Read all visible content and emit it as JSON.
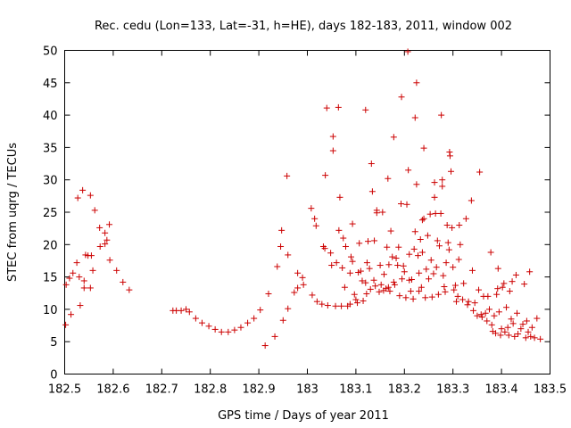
{
  "chart_data": {
    "type": "scatter",
    "title": "Rec. cedu (Lon=133, Lat=-31, h=HE), days 182-183, 2011, window 002",
    "xlabel": "GPS time / Days of year 2011",
    "ylabel": "STEC from uqrg / TECUs",
    "xlim": [
      182.5,
      183.5
    ],
    "ylim": [
      0,
      50
    ],
    "xticks": [
      182.5,
      182.6,
      182.7,
      182.8,
      182.9,
      183,
      183.1,
      183.2,
      183.3,
      183.4,
      183.5
    ],
    "xtick_labels": [
      "182.5",
      "182.6",
      "182.7",
      "182.8",
      "182.9",
      "183",
      "183.1",
      "183.2",
      "183.3",
      "183.4",
      "183.5"
    ],
    "yticks": [
      0,
      5,
      10,
      15,
      20,
      25,
      30,
      35,
      40,
      45,
      50
    ],
    "ytick_labels": [
      "0",
      "5",
      "10",
      "15",
      "20",
      "25",
      "30",
      "35",
      "40",
      "45",
      "50"
    ],
    "grid": false,
    "marker": "+",
    "color": "#cc0000",
    "points": [
      [
        182.502,
        7.6
      ],
      [
        182.503,
        13.8
      ],
      [
        182.51,
        14.8
      ],
      [
        182.513,
        9.2
      ],
      [
        182.517,
        15.6
      ],
      [
        182.525,
        17.2
      ],
      [
        182.527,
        27.2
      ],
      [
        182.53,
        15.0
      ],
      [
        182.532,
        10.6
      ],
      [
        182.537,
        28.4
      ],
      [
        182.54,
        14.4
      ],
      [
        182.54,
        13.3
      ],
      [
        182.543,
        18.4
      ],
      [
        182.548,
        18.3
      ],
      [
        182.553,
        13.3
      ],
      [
        182.553,
        27.6
      ],
      [
        182.555,
        18.3
      ],
      [
        182.558,
        16.0
      ],
      [
        182.562,
        25.3
      ],
      [
        182.572,
        22.6
      ],
      [
        182.573,
        19.7
      ],
      [
        182.583,
        20.1
      ],
      [
        182.583,
        21.8
      ],
      [
        182.587,
        20.7
      ],
      [
        182.592,
        23.1
      ],
      [
        182.593,
        17.6
      ],
      [
        182.607,
        16.0
      ],
      [
        182.62,
        14.2
      ],
      [
        182.633,
        13.0
      ],
      [
        182.723,
        9.8
      ],
      [
        182.73,
        9.8
      ],
      [
        182.74,
        9.8
      ],
      [
        182.75,
        10.0
      ],
      [
        182.757,
        9.6
      ],
      [
        182.77,
        8.6
      ],
      [
        182.783,
        7.9
      ],
      [
        182.797,
        7.4
      ],
      [
        182.81,
        6.9
      ],
      [
        182.823,
        6.5
      ],
      [
        182.837,
        6.5
      ],
      [
        182.85,
        6.8
      ],
      [
        182.863,
        7.2
      ],
      [
        182.877,
        7.9
      ],
      [
        182.89,
        8.6
      ],
      [
        182.903,
        9.9
      ],
      [
        182.913,
        4.4
      ],
      [
        182.92,
        12.4
      ],
      [
        182.933,
        5.8
      ],
      [
        182.938,
        16.6
      ],
      [
        182.945,
        19.7
      ],
      [
        182.947,
        22.2
      ],
      [
        182.95,
        8.3
      ],
      [
        182.958,
        30.6
      ],
      [
        182.96,
        18.4
      ],
      [
        182.96,
        10.1
      ],
      [
        182.973,
        12.6
      ],
      [
        182.98,
        15.6
      ],
      [
        182.98,
        13.3
      ],
      [
        182.99,
        14.9
      ],
      [
        182.992,
        13.8
      ],
      [
        183.008,
        25.6
      ],
      [
        183.01,
        12.2
      ],
      [
        183.015,
        24.0
      ],
      [
        183.018,
        22.9
      ],
      [
        183.02,
        11.2
      ],
      [
        183.03,
        10.8
      ],
      [
        183.033,
        19.7
      ],
      [
        183.036,
        19.4
      ],
      [
        183.037,
        30.7
      ],
      [
        183.04,
        41.1
      ],
      [
        183.042,
        10.6
      ],
      [
        183.048,
        18.7
      ],
      [
        183.05,
        16.8
      ],
      [
        183.053,
        36.7
      ],
      [
        183.053,
        34.5
      ],
      [
        183.058,
        10.5
      ],
      [
        183.06,
        17.2
      ],
      [
        183.064,
        41.2
      ],
      [
        183.065,
        22.2
      ],
      [
        183.067,
        27.3
      ],
      [
        183.07,
        10.5
      ],
      [
        183.072,
        16.4
      ],
      [
        183.074,
        21.0
      ],
      [
        183.077,
        13.4
      ],
      [
        183.079,
        19.7
      ],
      [
        183.083,
        10.5
      ],
      [
        183.088,
        10.8
      ],
      [
        183.088,
        15.6
      ],
      [
        183.09,
        18.1
      ],
      [
        183.093,
        23.2
      ],
      [
        183.093,
        17.4
      ],
      [
        183.097,
        12.3
      ],
      [
        183.1,
        11.5
      ],
      [
        183.103,
        11.0
      ],
      [
        183.105,
        15.7
      ],
      [
        183.107,
        20.2
      ],
      [
        183.11,
        15.9
      ],
      [
        183.113,
        14.4
      ],
      [
        183.115,
        11.3
      ],
      [
        183.12,
        40.8
      ],
      [
        183.12,
        14.1
      ],
      [
        183.122,
        12.4
      ],
      [
        183.123,
        17.2
      ],
      [
        183.125,
        20.5
      ],
      [
        183.128,
        16.3
      ],
      [
        183.13,
        13.1
      ],
      [
        183.132,
        32.5
      ],
      [
        183.134,
        28.2
      ],
      [
        183.137,
        14.5
      ],
      [
        183.138,
        20.6
      ],
      [
        183.14,
        13.6
      ],
      [
        183.143,
        25.3
      ],
      [
        183.143,
        24.9
      ],
      [
        183.148,
        12.7
      ],
      [
        183.15,
        16.8
      ],
      [
        183.152,
        13.8
      ],
      [
        183.155,
        25.0
      ],
      [
        183.157,
        12.9
      ],
      [
        183.158,
        15.4
      ],
      [
        183.162,
        13.2
      ],
      [
        183.164,
        19.6
      ],
      [
        183.166,
        30.2
      ],
      [
        183.167,
        13.4
      ],
      [
        183.168,
        16.9
      ],
      [
        183.17,
        12.8
      ],
      [
        183.172,
        22.1
      ],
      [
        183.175,
        18.1
      ],
      [
        183.178,
        36.6
      ],
      [
        183.178,
        14.2
      ],
      [
        183.18,
        13.8
      ],
      [
        183.183,
        17.9
      ],
      [
        183.186,
        16.8
      ],
      [
        183.188,
        19.6
      ],
      [
        183.19,
        12.1
      ],
      [
        183.193,
        26.3
      ],
      [
        183.194,
        42.8
      ],
      [
        183.195,
        14.7
      ],
      [
        183.198,
        16.7
      ],
      [
        183.2,
        15.8
      ],
      [
        183.203,
        11.8
      ],
      [
        183.205,
        26.2
      ],
      [
        183.207,
        49.8
      ],
      [
        183.208,
        31.5
      ],
      [
        183.21,
        18.5
      ],
      [
        183.21,
        14.5
      ],
      [
        183.213,
        12.8
      ],
      [
        183.215,
        14.6
      ],
      [
        183.218,
        11.6
      ],
      [
        183.22,
        19.3
      ],
      [
        183.222,
        39.6
      ],
      [
        183.222,
        22.0
      ],
      [
        183.225,
        45.0
      ],
      [
        183.225,
        29.3
      ],
      [
        183.228,
        18.3
      ],
      [
        183.23,
        15.6
      ],
      [
        183.23,
        12.8
      ],
      [
        183.233,
        20.8
      ],
      [
        183.235,
        13.4
      ],
      [
        183.237,
        23.8
      ],
      [
        183.237,
        18.8
      ],
      [
        183.24,
        34.9
      ],
      [
        183.24,
        24.0
      ],
      [
        183.243,
        11.8
      ],
      [
        183.245,
        16.2
      ],
      [
        183.248,
        21.4
      ],
      [
        183.25,
        14.7
      ],
      [
        183.253,
        24.7
      ],
      [
        183.255,
        17.6
      ],
      [
        183.257,
        11.9
      ],
      [
        183.26,
        15.5
      ],
      [
        183.262,
        29.6
      ],
      [
        183.262,
        27.3
      ],
      [
        183.264,
        24.8
      ],
      [
        183.266,
        16.5
      ],
      [
        183.268,
        20.6
      ],
      [
        183.27,
        12.3
      ],
      [
        183.272,
        19.8
      ],
      [
        183.275,
        24.8
      ],
      [
        183.276,
        40.0
      ],
      [
        183.278,
        30.0
      ],
      [
        183.278,
        29.0
      ],
      [
        183.28,
        15.2
      ],
      [
        183.282,
        13.5
      ],
      [
        183.284,
        12.7
      ],
      [
        183.286,
        17.2
      ],
      [
        183.288,
        23.0
      ],
      [
        183.29,
        20.3
      ],
      [
        183.292,
        19.2
      ],
      [
        183.293,
        34.3
      ],
      [
        183.294,
        33.7
      ],
      [
        183.296,
        31.3
      ],
      [
        183.298,
        22.6
      ],
      [
        183.3,
        16.5
      ],
      [
        183.302,
        13.0
      ],
      [
        183.305,
        13.7
      ],
      [
        183.307,
        11.2
      ],
      [
        183.31,
        12.0
      ],
      [
        183.312,
        17.7
      ],
      [
        183.313,
        23.0
      ],
      [
        183.315,
        20.0
      ],
      [
        183.32,
        11.5
      ],
      [
        183.322,
        14.0
      ],
      [
        183.327,
        24.0
      ],
      [
        183.33,
        10.7
      ],
      [
        183.332,
        11.2
      ],
      [
        183.338,
        26.8
      ],
      [
        183.34,
        16.0
      ],
      [
        183.342,
        9.8
      ],
      [
        183.345,
        11.0
      ],
      [
        183.35,
        9.0
      ],
      [
        183.353,
        13.0
      ],
      [
        183.355,
        31.2
      ],
      [
        183.358,
        9.2
      ],
      [
        183.36,
        8.8
      ],
      [
        183.363,
        12.0
      ],
      [
        183.367,
        9.4
      ],
      [
        183.37,
        8.2
      ],
      [
        183.372,
        12.0
      ],
      [
        183.375,
        10.0
      ],
      [
        183.378,
        18.8
      ],
      [
        183.38,
        7.6
      ],
      [
        183.382,
        6.6
      ],
      [
        183.385,
        9.0
      ],
      [
        183.388,
        6.3
      ],
      [
        183.39,
        12.3
      ],
      [
        183.392,
        13.2
      ],
      [
        183.393,
        16.3
      ],
      [
        183.395,
        9.6
      ],
      [
        183.398,
        6.0
      ],
      [
        183.4,
        7.0
      ],
      [
        183.402,
        13.4
      ],
      [
        183.405,
        14.0
      ],
      [
        183.407,
        6.5
      ],
      [
        183.41,
        10.3
      ],
      [
        183.413,
        7.2
      ],
      [
        183.415,
        6.0
      ],
      [
        183.417,
        12.8
      ],
      [
        183.42,
        8.5
      ],
      [
        183.422,
        14.3
      ],
      [
        183.424,
        7.8
      ],
      [
        183.427,
        5.8
      ],
      [
        183.43,
        15.3
      ],
      [
        183.432,
        9.4
      ],
      [
        183.434,
        6.2
      ],
      [
        183.44,
        7.0
      ],
      [
        183.444,
        7.7
      ],
      [
        183.447,
        13.9
      ],
      [
        183.45,
        5.6
      ],
      [
        183.452,
        8.2
      ],
      [
        183.455,
        6.5
      ],
      [
        183.458,
        15.8
      ],
      [
        183.46,
        5.8
      ],
      [
        183.463,
        7.2
      ],
      [
        183.468,
        5.6
      ],
      [
        183.473,
        8.6
      ],
      [
        183.48,
        5.4
      ]
    ]
  }
}
